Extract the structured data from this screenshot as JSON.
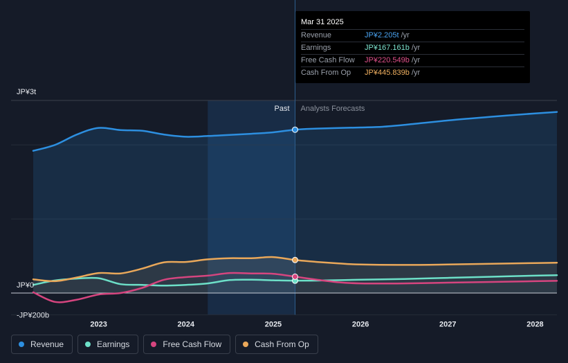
{
  "tooltip": {
    "date": "Mar 31 2025",
    "rows": [
      {
        "label": "Revenue",
        "value": "JP¥2.205t",
        "unit": "/yr",
        "color": "#4aa3f0"
      },
      {
        "label": "Earnings",
        "value": "JP¥167.161b",
        "unit": "/yr",
        "color": "#7ee5d0"
      },
      {
        "label": "Free Cash Flow",
        "value": "JP¥220.549b",
        "unit": "/yr",
        "color": "#e0508a"
      },
      {
        "label": "Cash From Op",
        "value": "JP¥445.839b",
        "unit": "/yr",
        "color": "#f0b060"
      }
    ]
  },
  "legend": [
    {
      "label": "Revenue",
      "color": "#2d8fe0"
    },
    {
      "label": "Earnings",
      "color": "#6de0c8"
    },
    {
      "label": "Free Cash Flow",
      "color": "#d6457f"
    },
    {
      "label": "Cash From Op",
      "color": "#eaa85a"
    }
  ],
  "chart_data": {
    "type": "line",
    "y_unit": "JP¥ billions",
    "ylim": [
      -200,
      2600
    ],
    "y_tick_labels": [
      {
        "value": 2600,
        "label": "JP¥3t"
      },
      {
        "value": 0,
        "label": "JP¥0"
      },
      {
        "value": -200,
        "label": "-JP¥200b"
      }
    ],
    "xlim": [
      2022.25,
      2028.25
    ],
    "x_ticks": [
      2023,
      2024,
      2025,
      2026,
      2027,
      2028
    ],
    "x_tick_labels": [
      "2023",
      "2024",
      "2025",
      "2026",
      "2027",
      "2028"
    ],
    "past_label": "Past",
    "forecast_label": "Analysts Forecasts",
    "divider_x": 2025.25,
    "highlight_range": [
      2024.25,
      2025.25
    ],
    "series": [
      {
        "name": "Revenue",
        "color": "#2d8fe0",
        "area": true,
        "points": [
          [
            2022.25,
            1920
          ],
          [
            2022.5,
            2000
          ],
          [
            2022.75,
            2140
          ],
          [
            2023.0,
            2230
          ],
          [
            2023.25,
            2200
          ],
          [
            2023.5,
            2190
          ],
          [
            2023.75,
            2140
          ],
          [
            2024.0,
            2110
          ],
          [
            2024.25,
            2120
          ],
          [
            2024.5,
            2135
          ],
          [
            2024.75,
            2150
          ],
          [
            2025.0,
            2170
          ],
          [
            2025.25,
            2205
          ],
          [
            2025.5,
            2220
          ],
          [
            2026.0,
            2235
          ],
          [
            2026.25,
            2245
          ],
          [
            2026.5,
            2270
          ],
          [
            2027.0,
            2330
          ],
          [
            2027.5,
            2380
          ],
          [
            2028.0,
            2425
          ],
          [
            2028.25,
            2445
          ]
        ]
      },
      {
        "name": "Earnings",
        "color": "#6de0c8",
        "area": false,
        "points": [
          [
            2022.25,
            110
          ],
          [
            2022.5,
            170
          ],
          [
            2022.75,
            195
          ],
          [
            2023.0,
            200
          ],
          [
            2023.25,
            120
          ],
          [
            2023.5,
            110
          ],
          [
            2023.75,
            100
          ],
          [
            2024.0,
            110
          ],
          [
            2024.25,
            130
          ],
          [
            2024.5,
            175
          ],
          [
            2024.75,
            180
          ],
          [
            2025.0,
            172
          ],
          [
            2025.25,
            167
          ],
          [
            2025.5,
            168
          ],
          [
            2026.0,
            180
          ],
          [
            2026.5,
            190
          ],
          [
            2027.0,
            205
          ],
          [
            2027.5,
            220
          ],
          [
            2028.0,
            235
          ],
          [
            2028.25,
            240
          ]
        ]
      },
      {
        "name": "Free Cash Flow",
        "color": "#d6457f",
        "area": false,
        "points": [
          [
            2022.25,
            10
          ],
          [
            2022.5,
            -120
          ],
          [
            2022.75,
            -90
          ],
          [
            2023.0,
            -20
          ],
          [
            2023.25,
            0
          ],
          [
            2023.5,
            70
          ],
          [
            2023.75,
            180
          ],
          [
            2024.0,
            215
          ],
          [
            2024.25,
            235
          ],
          [
            2024.5,
            270
          ],
          [
            2024.75,
            265
          ],
          [
            2025.0,
            260
          ],
          [
            2025.25,
            221
          ],
          [
            2025.5,
            180
          ],
          [
            2025.75,
            145
          ],
          [
            2026.0,
            130
          ],
          [
            2026.5,
            130
          ],
          [
            2027.0,
            140
          ],
          [
            2027.5,
            150
          ],
          [
            2028.0,
            160
          ],
          [
            2028.25,
            165
          ]
        ]
      },
      {
        "name": "Cash From Op",
        "color": "#eaa85a",
        "area": true,
        "points": [
          [
            2022.25,
            185
          ],
          [
            2022.5,
            160
          ],
          [
            2022.75,
            210
          ],
          [
            2023.0,
            270
          ],
          [
            2023.25,
            265
          ],
          [
            2023.5,
            330
          ],
          [
            2023.75,
            415
          ],
          [
            2024.0,
            420
          ],
          [
            2024.25,
            455
          ],
          [
            2024.5,
            470
          ],
          [
            2024.75,
            470
          ],
          [
            2025.0,
            485
          ],
          [
            2025.25,
            446
          ],
          [
            2025.5,
            420
          ],
          [
            2025.75,
            400
          ],
          [
            2026.0,
            385
          ],
          [
            2026.5,
            380
          ],
          [
            2027.0,
            385
          ],
          [
            2027.5,
            395
          ],
          [
            2028.0,
            405
          ],
          [
            2028.25,
            410
          ]
        ]
      }
    ],
    "markers_at_x": 2025.25
  }
}
